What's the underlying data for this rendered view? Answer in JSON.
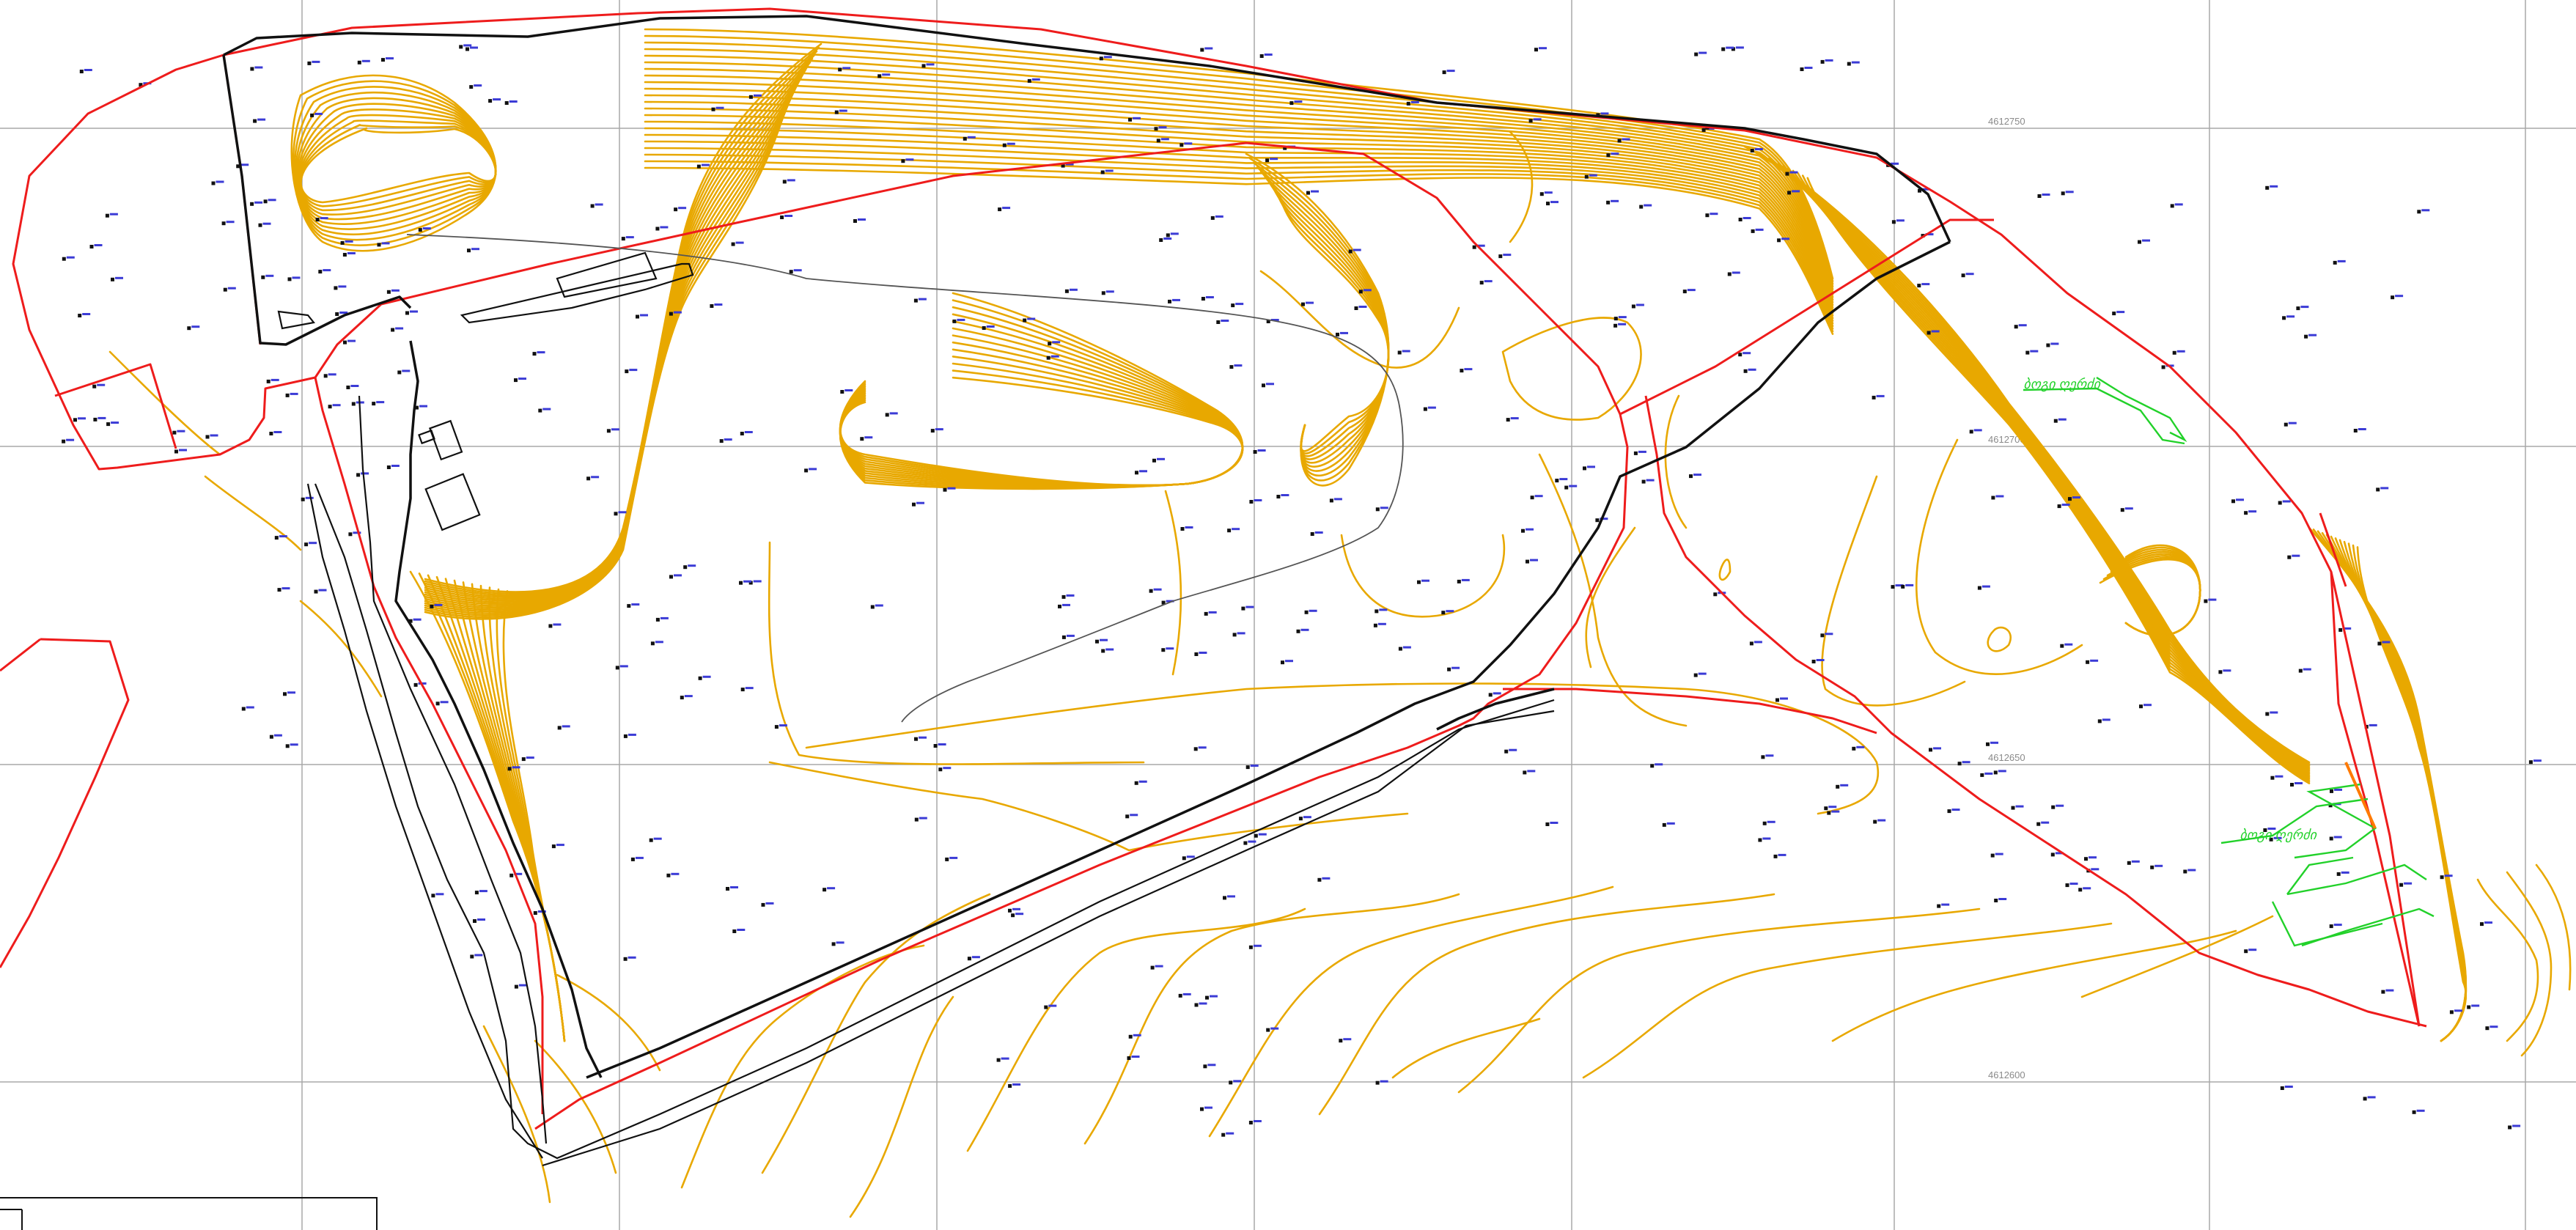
{
  "map": {
    "grid_labels": [
      "4612750",
      "4612700",
      "4612650",
      "4612600"
    ],
    "green_labels": [
      "ბოგი ღერძი",
      "ბოგი ღერძი"
    ],
    "colors": {
      "contour": "#e8a800",
      "boundary": "#ee1c1c",
      "road": "#111111",
      "grid": "#a8a8a8",
      "annotation": "#22d12a",
      "survey_label": "#3b3bd6"
    }
  }
}
